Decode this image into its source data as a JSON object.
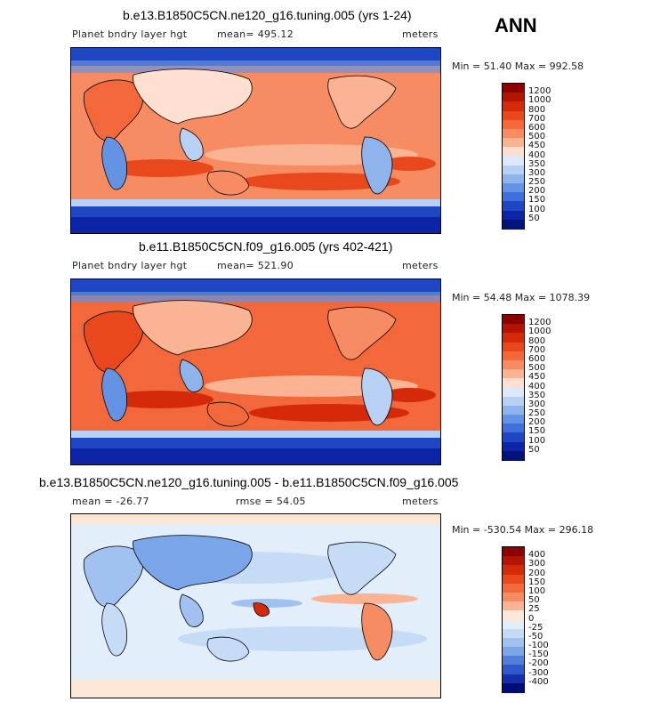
{
  "season": "ANN",
  "panels": [
    {
      "title": "b.e13.B1850C5CN.ne120_g16.tuning.005 (yrs 1-24)",
      "variable": "Planet bndry layer hgt",
      "stat": "mean=  495.12",
      "units": "meters",
      "minmax": "Min =  51.40 Max = 992.58",
      "levels": [
        "1200",
        "1000",
        "800",
        "700",
        "600",
        "500",
        "450",
        "400",
        "350",
        "300",
        "250",
        "200",
        "150",
        "100",
        "50"
      ],
      "colors": [
        "#8b0000",
        "#b31400",
        "#d42a0a",
        "#e8481c",
        "#f2683a",
        "#f78c62",
        "#fab393",
        "#fde0cf",
        "#dce9fa",
        "#b7d0f4",
        "#8fb3ec",
        "#6593e3",
        "#3f6fd8",
        "#1f47c3",
        "#0c25a6",
        "#00137a"
      ]
    },
    {
      "title": "b.e11.B1850C5CN.f09_g16.005 (yrs 402-421)",
      "variable": "Planet bndry layer hgt",
      "stat": "mean=  521.90",
      "units": "meters",
      "minmax": "Min =  54.48 Max = 1078.39",
      "levels": [
        "1200",
        "1000",
        "800",
        "700",
        "600",
        "500",
        "450",
        "400",
        "350",
        "300",
        "250",
        "200",
        "150",
        "100",
        "50"
      ],
      "colors": [
        "#8b0000",
        "#b31400",
        "#d42a0a",
        "#e8481c",
        "#f2683a",
        "#f78c62",
        "#fab393",
        "#fde0cf",
        "#dce9fa",
        "#b7d0f4",
        "#8fb3ec",
        "#6593e3",
        "#3f6fd8",
        "#1f47c3",
        "#0c25a6",
        "#00137a"
      ]
    },
    {
      "title": "b.e13.B1850C5CN.ne120_g16.tuning.005 - b.e11.B1850C5CN.f09_g16.005",
      "stat": "mean = -26.77",
      "stat2": "rmse =  54.05",
      "units": "meters",
      "minmax": "Min = -530.54 Max = 296.18",
      "levels": [
        "400",
        "300",
        "200",
        "150",
        "100",
        "50",
        "25",
        "0",
        "-25",
        "-50",
        "-100",
        "-150",
        "-200",
        "-300",
        "-400"
      ],
      "colors": [
        "#8b0000",
        "#b31400",
        "#d42a0a",
        "#e8481c",
        "#f2683a",
        "#f78c62",
        "#fab393",
        "#fde7d6",
        "#e3eefb",
        "#c5dbf6",
        "#a1c2f0",
        "#7aa5e8",
        "#527fdc",
        "#2f59c8",
        "#1430a8",
        "#000d78"
      ]
    }
  ]
}
